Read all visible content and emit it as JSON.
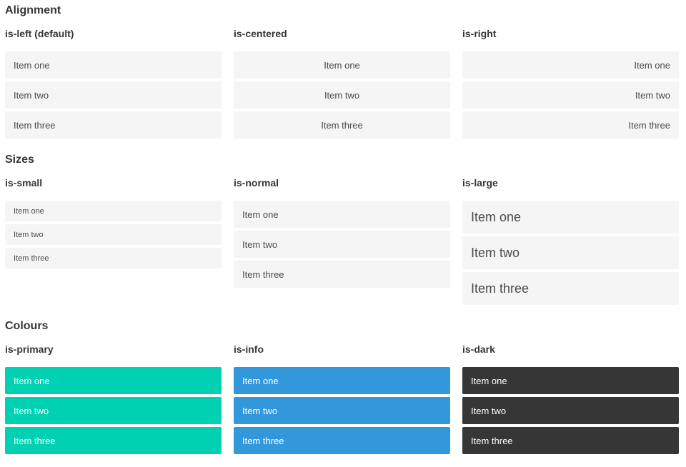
{
  "sections": [
    {
      "title": "Alignment",
      "columns": [
        {
          "label": "is-left (default)",
          "items": [
            "Item one",
            "Item two",
            "Item three"
          ]
        },
        {
          "label": "is-centered",
          "items": [
            "Item one",
            "Item two",
            "Item three"
          ]
        },
        {
          "label": "is-right",
          "items": [
            "Item one",
            "Item two",
            "Item three"
          ]
        }
      ]
    },
    {
      "title": "Sizes",
      "columns": [
        {
          "label": "is-small",
          "items": [
            "Item one",
            "Item two",
            "Item three"
          ]
        },
        {
          "label": "is-normal",
          "items": [
            "Item one",
            "Item two",
            "Item three"
          ]
        },
        {
          "label": "is-large",
          "items": [
            "Item one",
            "Item two",
            "Item three"
          ]
        }
      ]
    },
    {
      "title": "Colours",
      "columns": [
        {
          "label": "is-primary",
          "items": [
            "Item one",
            "Item two",
            "Item three"
          ]
        },
        {
          "label": "is-info",
          "items": [
            "Item one",
            "Item two",
            "Item three"
          ]
        },
        {
          "label": "is-dark",
          "items": [
            "Item one",
            "Item two",
            "Item three"
          ]
        }
      ]
    }
  ],
  "colors": {
    "primary": "#00d1b2",
    "info": "#3398db",
    "dark": "#363636",
    "item_background": "#f5f5f5",
    "item_text": "#4a4a4a",
    "heading_text": "#363636",
    "colored_item_text": "#ffffff"
  }
}
